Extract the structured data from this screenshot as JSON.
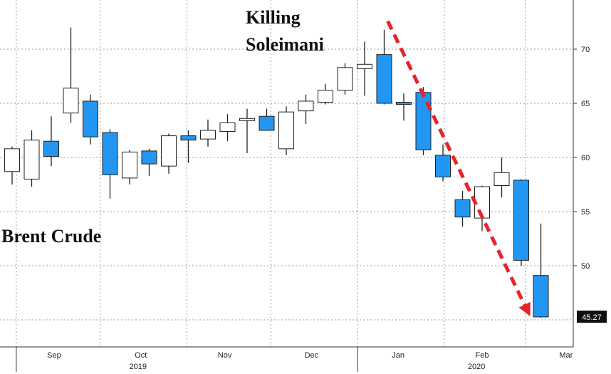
{
  "chart_data": {
    "type": "candlestick",
    "title": "",
    "xlabel": "",
    "ylabel": "",
    "ylim": [
      42,
      76
    ],
    "yticks": [
      50,
      55,
      60,
      65,
      70
    ],
    "grid": true,
    "axis_side": "right",
    "up_color": "#ffffff",
    "down_color": "#2196f3",
    "trend_color": "#e8222a",
    "month_labels": [
      "Sep",
      "Oct",
      "Nov",
      "Dec",
      "Jan",
      "Feb",
      "Mar"
    ],
    "year_labels": [
      "2019",
      "2020"
    ],
    "annotations": {
      "series_label": "Brent Crude",
      "event_line1": "Killing",
      "event_line2": "Soleimani",
      "last_price": "45.27"
    },
    "series": [
      {
        "date": "2019-08-30",
        "open": 58.7,
        "high": 61.0,
        "low": 57.5,
        "close": 60.8
      },
      {
        "date": "2019-09-06",
        "open": 58.0,
        "high": 62.5,
        "low": 57.3,
        "close": 61.6
      },
      {
        "date": "2019-09-13",
        "open": 61.5,
        "high": 63.8,
        "low": 59.2,
        "close": 60.1
      },
      {
        "date": "2019-09-20",
        "open": 64.1,
        "high": 72.0,
        "low": 63.2,
        "close": 66.4
      },
      {
        "date": "2019-09-27",
        "open": 65.2,
        "high": 65.8,
        "low": 61.2,
        "close": 61.9
      },
      {
        "date": "2019-10-04",
        "open": 62.3,
        "high": 62.6,
        "low": 56.2,
        "close": 58.4
      },
      {
        "date": "2019-10-11",
        "open": 58.1,
        "high": 60.7,
        "low": 57.5,
        "close": 60.5
      },
      {
        "date": "2019-10-18",
        "open": 60.6,
        "high": 60.8,
        "low": 58.3,
        "close": 59.4
      },
      {
        "date": "2019-10-25",
        "open": 59.2,
        "high": 62.2,
        "low": 58.5,
        "close": 62.0
      },
      {
        "date": "2019-11-01",
        "open": 62.0,
        "high": 62.5,
        "low": 59.5,
        "close": 61.6
      },
      {
        "date": "2019-11-08",
        "open": 61.7,
        "high": 63.5,
        "low": 61.0,
        "close": 62.5
      },
      {
        "date": "2019-11-15",
        "open": 62.4,
        "high": 64.0,
        "low": 61.5,
        "close": 63.2
      },
      {
        "date": "2019-11-22",
        "open": 63.5,
        "high": 64.5,
        "low": 60.4,
        "close": 63.6
      },
      {
        "date": "2019-11-29",
        "open": 63.8,
        "high": 64.5,
        "low": 62.5,
        "close": 62.5
      },
      {
        "date": "2019-12-06",
        "open": 60.8,
        "high": 64.7,
        "low": 60.2,
        "close": 64.2
      },
      {
        "date": "2019-12-13",
        "open": 64.3,
        "high": 65.8,
        "low": 63.1,
        "close": 65.2
      },
      {
        "date": "2019-12-20",
        "open": 65.1,
        "high": 66.8,
        "low": 64.9,
        "close": 66.2
      },
      {
        "date": "2019-12-27",
        "open": 66.2,
        "high": 68.7,
        "low": 65.8,
        "close": 68.3
      },
      {
        "date": "2020-01-03",
        "open": 68.2,
        "high": 70.7,
        "low": 65.7,
        "close": 68.6
      },
      {
        "date": "2020-01-10",
        "open": 69.5,
        "high": 71.8,
        "low": 64.9,
        "close": 65.0
      },
      {
        "date": "2020-01-17",
        "open": 65.1,
        "high": 65.9,
        "low": 63.4,
        "close": 64.9
      },
      {
        "date": "2020-01-24",
        "open": 66.0,
        "high": 66.5,
        "low": 60.2,
        "close": 60.7
      },
      {
        "date": "2020-01-31",
        "open": 60.2,
        "high": 61.2,
        "low": 57.8,
        "close": 58.2
      },
      {
        "date": "2020-02-07",
        "open": 56.1,
        "high": 56.9,
        "low": 53.6,
        "close": 54.5
      },
      {
        "date": "2020-02-14",
        "open": 54.4,
        "high": 57.4,
        "low": 53.2,
        "close": 57.3
      },
      {
        "date": "2020-02-21",
        "open": 57.4,
        "high": 60.0,
        "low": 56.3,
        "close": 58.6
      },
      {
        "date": "2020-02-28",
        "open": 57.9,
        "high": 58.0,
        "low": 50.0,
        "close": 50.5
      },
      {
        "date": "2020-03-06",
        "open": 49.1,
        "high": 53.9,
        "low": 45.2,
        "close": 45.27
      }
    ]
  }
}
